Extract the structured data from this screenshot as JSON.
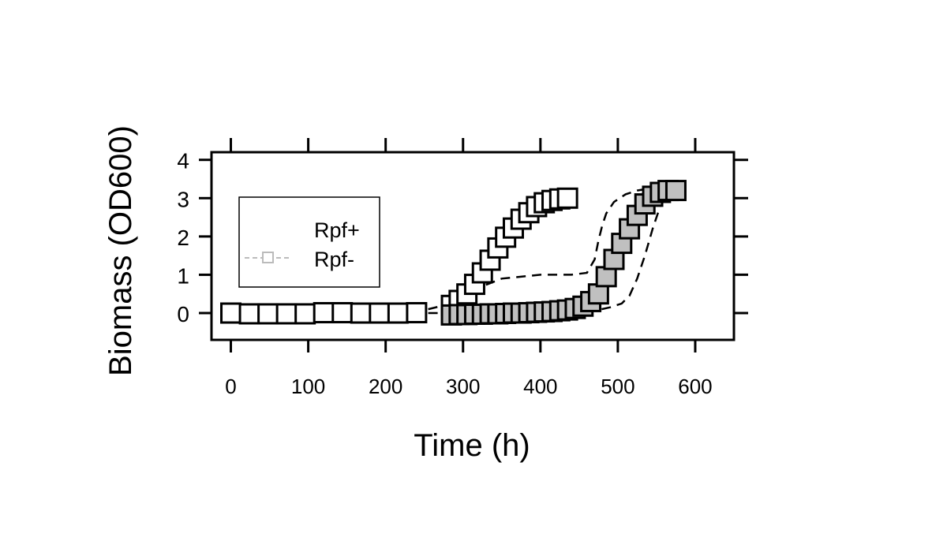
{
  "chart_data": {
    "type": "scatter",
    "xlabel": "Time (h)",
    "ylabel": "Biomass (OD600)",
    "xlim": [
      -25,
      650
    ],
    "ylim": [
      -0.7,
      4.2
    ],
    "xticks": [
      0,
      100,
      200,
      300,
      400,
      500,
      600
    ],
    "yticks": [
      0,
      1,
      2,
      3,
      4
    ],
    "grid": false,
    "legend": {
      "position": "upper-left",
      "entries": [
        "Rpf+",
        "Rpf-"
      ]
    },
    "series": [
      {
        "name": "Rpf+",
        "marker": "square",
        "fill": "#ffffff",
        "x": [
          0,
          24,
          48,
          72,
          96,
          120,
          144,
          168,
          192,
          216,
          240,
          285,
          295,
          305,
          315,
          325,
          335,
          345,
          355,
          365,
          375,
          385,
          395,
          405,
          415,
          425,
          435
        ],
        "y": [
          0.0,
          -0.02,
          -0.02,
          -0.02,
          -0.02,
          0.01,
          0.01,
          0.0,
          0.0,
          0.0,
          0.01,
          0.2,
          0.33,
          0.5,
          0.75,
          1.05,
          1.38,
          1.7,
          1.98,
          2.22,
          2.45,
          2.62,
          2.78,
          2.88,
          2.94,
          2.98,
          3.0
        ]
      },
      {
        "name": "Rpf-",
        "marker": "square",
        "fill": "#c0c0c0",
        "line_color": "#c0c0c0",
        "x": [
          285,
          295,
          305,
          315,
          325,
          335,
          345,
          355,
          365,
          375,
          385,
          395,
          405,
          415,
          425,
          435,
          445,
          455,
          465,
          475,
          485,
          495,
          505,
          515,
          525,
          535,
          545,
          555,
          565,
          575
        ],
        "y": [
          -0.05,
          -0.04,
          -0.04,
          -0.03,
          -0.03,
          -0.02,
          -0.02,
          -0.01,
          0.0,
          0.0,
          0.01,
          0.02,
          0.03,
          0.04,
          0.06,
          0.08,
          0.12,
          0.18,
          0.3,
          0.5,
          0.95,
          1.4,
          1.82,
          2.2,
          2.55,
          2.85,
          3.05,
          3.15,
          3.2,
          3.2
        ]
      },
      {
        "name": "",
        "style": "dashed",
        "x": [
          255,
          275,
          300,
          350,
          400,
          440,
          460,
          470,
          475,
          480,
          485,
          495,
          510,
          525,
          540,
          555
        ],
        "y": [
          0.1,
          0.2,
          0.5,
          0.9,
          1.0,
          1.0,
          1.05,
          1.4,
          1.9,
          2.3,
          2.6,
          2.9,
          3.1,
          3.2,
          3.25,
          3.25
        ]
      },
      {
        "name": "",
        "style": "dashed",
        "x": [
          255,
          270,
          290,
          320,
          360,
          400,
          440,
          470,
          490,
          505,
          515,
          525,
          535,
          545,
          555,
          565
        ],
        "y": [
          0.0,
          0.0,
          0.0,
          0.0,
          0.0,
          0.0,
          0.02,
          0.06,
          0.15,
          0.25,
          0.45,
          0.9,
          1.5,
          2.2,
          2.8,
          3.1
        ]
      }
    ]
  }
}
